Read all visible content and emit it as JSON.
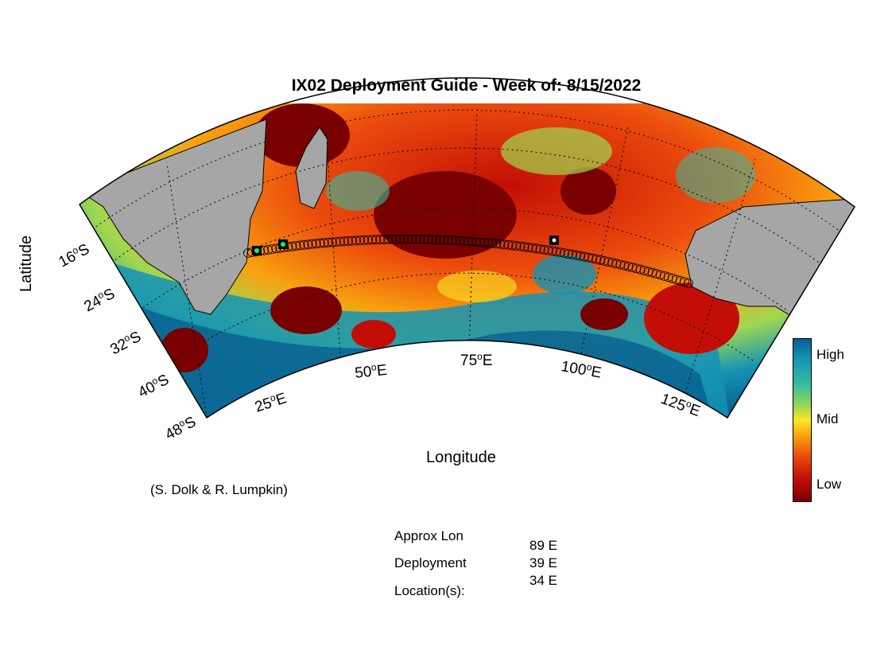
{
  "title": "IX02 Deployment Guide - Week of: 8/15/2022",
  "axes": {
    "xlabel": "Longitude",
    "ylabel": "Latitude",
    "lat_ticks": [
      "16",
      "24",
      "32",
      "40",
      "48"
    ],
    "lat_hemisphere": "S",
    "lon_ticks": [
      "25",
      "50",
      "75",
      "100",
      "125"
    ],
    "lon_hemisphere": "E",
    "degree_symbol": "o"
  },
  "colorbar": {
    "labels": [
      "High",
      "Mid",
      "Low"
    ],
    "colors": [
      "#0a5f8f",
      "#36bca0",
      "#fbe824",
      "#ec4d0d",
      "#7a0000"
    ]
  },
  "map": {
    "land_color": "#a6a6a6",
    "track_marker_color": "#000000",
    "deployment_marker_color": "#00ff66",
    "dominant_field_color": "#c20e06"
  },
  "credit": "(S. Dolk & R. Lumpkin)",
  "deployment_info": {
    "label_line1": "Approx Lon",
    "label_line2": "Deployment",
    "label_line3": "Location(s):",
    "locations": [
      "89 E",
      "39 E",
      "34 E"
    ]
  }
}
